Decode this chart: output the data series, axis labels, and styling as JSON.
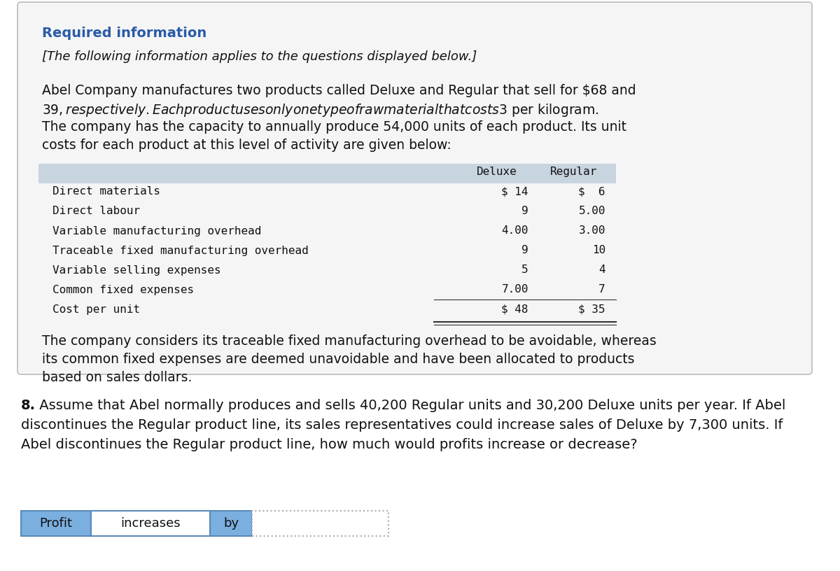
{
  "required_info_title": "Required information",
  "italic_subtitle": "[The following information applies to the questions displayed below.]",
  "body_line1": "Abel Company manufactures two products called Deluxe and Regular that sell for $68 and",
  "body_line2": "$39, respectively. Each product uses only one type of raw material that costs $3 per kilogram.",
  "body_line3": "The company has the capacity to annually produce 54,000 units of each product. Its unit",
  "body_line4": "costs for each product at this level of activity are given below:",
  "table_col1_header": "Deluxe",
  "table_col2_header": "Regular",
  "table_rows": [
    [
      "Direct materials",
      "$ 14",
      "$  6"
    ],
    [
      "Direct labour",
      "9",
      "5.00"
    ],
    [
      "Variable manufacturing overhead",
      "4.00",
      "3.00"
    ],
    [
      "Traceable fixed manufacturing overhead",
      "9",
      "10"
    ],
    [
      "Variable selling expenses",
      "5",
      "4"
    ],
    [
      "Common fixed expenses",
      "7.00",
      "7"
    ],
    [
      "Cost per unit",
      "$ 48",
      "$ 35"
    ]
  ],
  "footer_line1": "The company considers its traceable fixed manufacturing overhead to be avoidable, whereas",
  "footer_line2": "its common fixed expenses are deemed unavoidable and have been allocated to products",
  "footer_line3": "based on sales dollars.",
  "q8_bold": "8.",
  "q8_text": " Assume that Abel normally produces and sells 40,200 Regular units and 30,200 Deluxe units per year. If Abel",
  "q8_line2": "discontinues the Regular product line, its sales representatives could increase sales of Deluxe by 7,300 units. If",
  "q8_line3": "Abel discontinues the Regular product line, how much would profits increase or decrease?",
  "ans_label1": "Profit",
  "ans_label2": "increases",
  "ans_label3": "by",
  "blue_bg": "#7aafe0",
  "blue_border": "#5a8ab8",
  "box_bg": "#f5f5f5",
  "box_border": "#aaaaaa",
  "header_bg": "#c8d4e0",
  "title_color": "#2a5ba8",
  "body_color": "#111111",
  "mono_color": "#111111",
  "main_bg": "#ffffff",
  "title_fs": 14,
  "body_fs": 13.5,
  "mono_fs": 11.5,
  "q_fs": 14,
  "ans_fs": 13
}
